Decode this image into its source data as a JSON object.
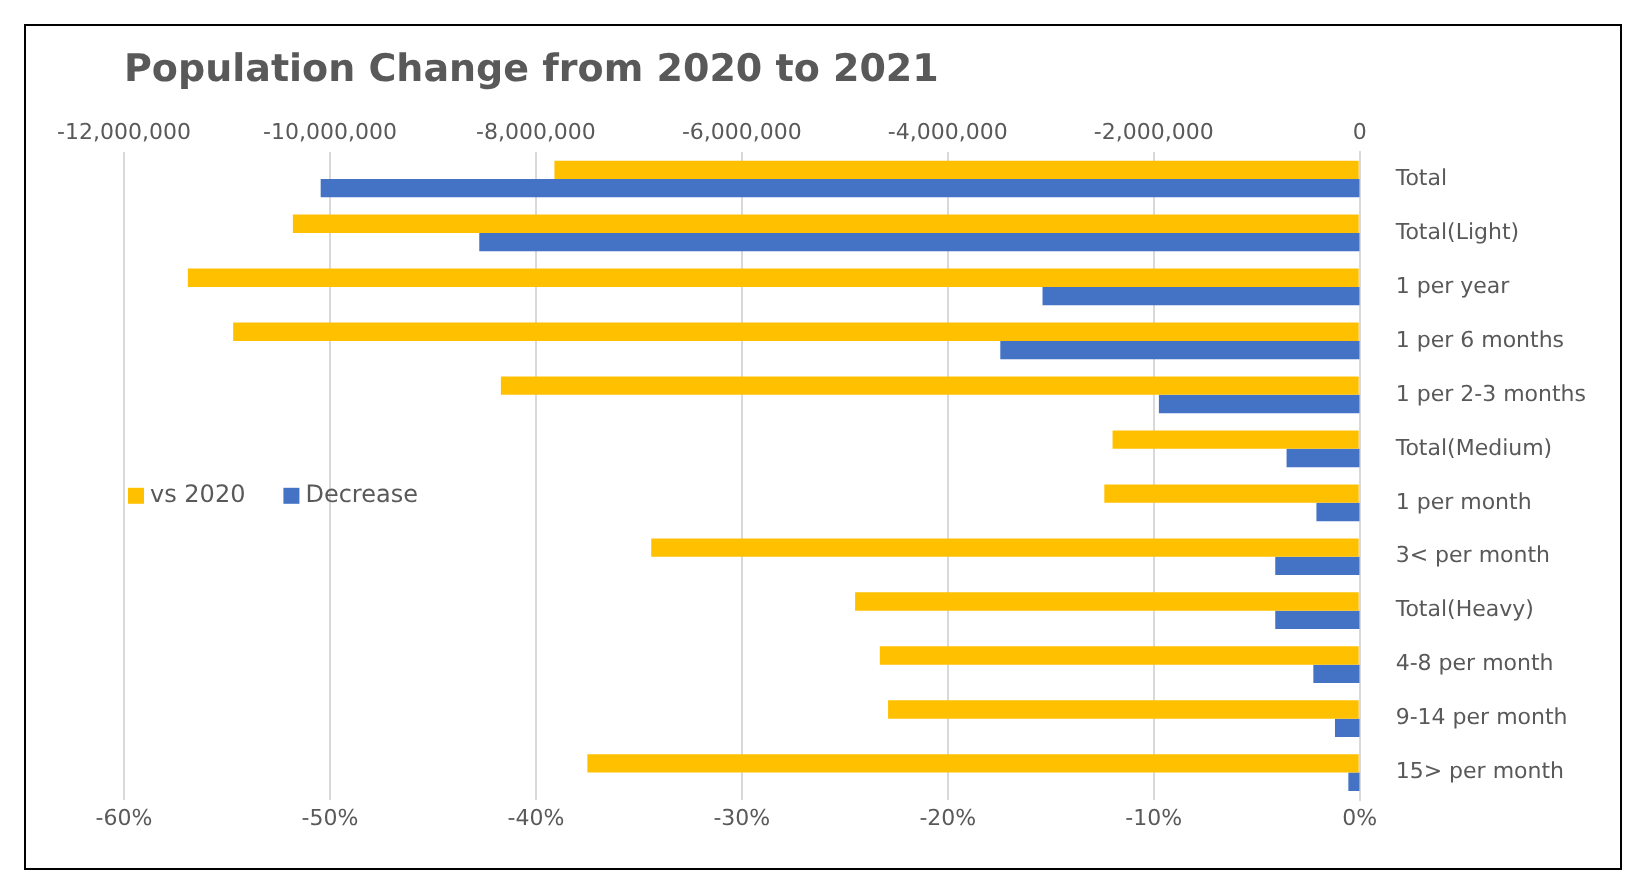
{
  "chart_data": {
    "type": "bar",
    "orientation": "horizontal",
    "title": "Population Change from 2020 to 2021",
    "categories": [
      "Total",
      "Total(Light)",
      "1 per year",
      "1 per 6 months",
      "1 per 2-3 months",
      "Total(Medium)",
      "1 per month",
      "3< per month",
      "Total(Heavy)",
      "4-8 per month",
      "9-14 per month",
      "15> per month"
    ],
    "series": [
      {
        "name": "vs 2020",
        "color": "#ffc000",
        "values": [
          -39.1,
          -51.8,
          -56.9,
          -54.7,
          -41.7,
          -12.0,
          -12.4,
          -34.4,
          -24.5,
          -23.3,
          -22.9,
          -37.5
        ]
      },
      {
        "name": "Decrease",
        "color": "#4472c4",
        "axis": "x2",
        "values": [
          -10090000,
          -8550000,
          -3080000,
          -3490000,
          -1950000,
          -710000,
          -420000,
          -820000,
          -820000,
          -450000,
          -240000,
          -110000
        ]
      }
    ],
    "xlim": [
      -60,
      0
    ],
    "xticks": [
      {
        "value": -60,
        "label": "-60%"
      },
      {
        "value": -50,
        "label": "-50%"
      },
      {
        "value": -40,
        "label": "-40%"
      },
      {
        "value": -30,
        "label": "-30%"
      },
      {
        "value": -20,
        "label": "-20%"
      },
      {
        "value": -10,
        "label": "-10%"
      },
      {
        "value": 0,
        "label": "0%"
      }
    ],
    "x2lim": [
      -12000000,
      0
    ],
    "x2ticks": [
      {
        "value": -12000000,
        "label": "-12,000,000"
      },
      {
        "value": -10000000,
        "label": "-10,000,000"
      },
      {
        "value": -8000000,
        "label": "-8,000,000"
      },
      {
        "value": -6000000,
        "label": "-6,000,000"
      },
      {
        "value": -4000000,
        "label": "-4,000,000"
      },
      {
        "value": -2000000,
        "label": "-2,000,000"
      },
      {
        "value": 0,
        "label": "0"
      }
    ],
    "grid": "x",
    "legend": "left"
  }
}
